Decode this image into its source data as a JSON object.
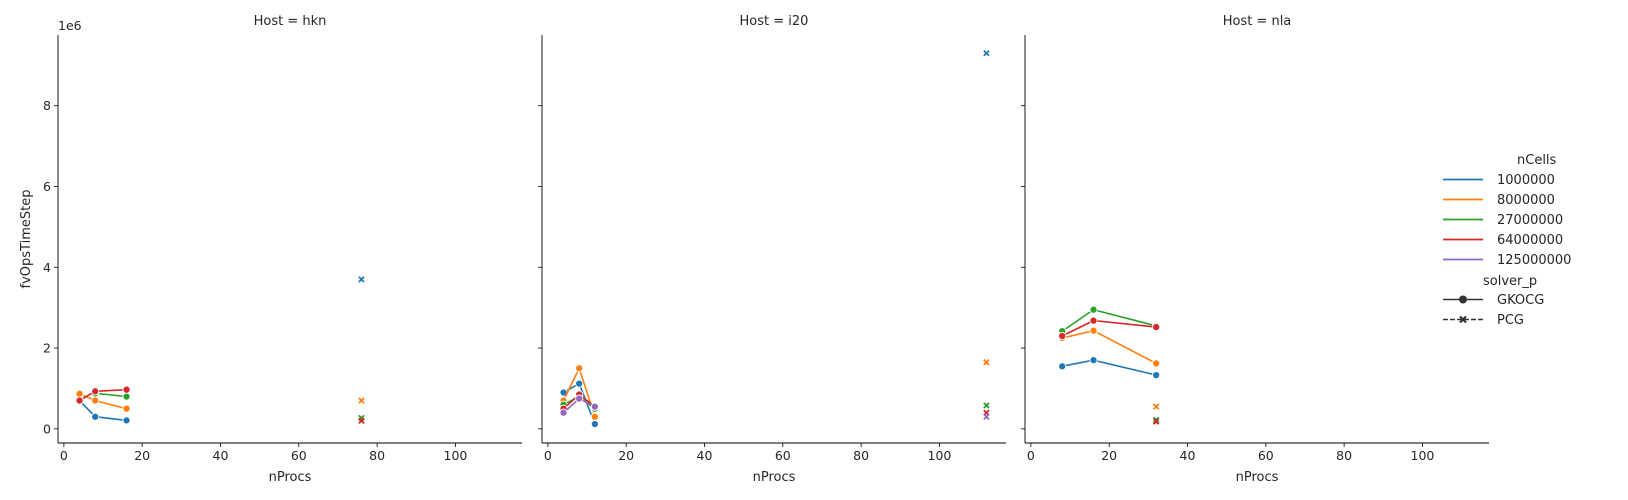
{
  "chart_data": {
    "type": "scatter",
    "x_label": "nProcs",
    "y_label": "fvOpsTimeStep",
    "y_offset_label": "1e6",
    "x_ticks": [
      0,
      20,
      40,
      60,
      80,
      100
    ],
    "x_range": [
      -1.5,
      117
    ],
    "y_ticks": [
      0,
      2,
      4,
      6,
      8
    ],
    "y_range": [
      -0.35,
      9.75
    ],
    "grid": false,
    "legend_placement": "right",
    "colors": {
      "1000000": "#1f77b4",
      "8000000": "#ff7f0e",
      "27000000": "#2ca02c",
      "64000000": "#d62728",
      "125000000": "#9467bd"
    },
    "legend": {
      "hue_title": "nCells",
      "hue_entries": [
        "1000000",
        "8000000",
        "27000000",
        "64000000",
        "125000000"
      ],
      "style_title": "solver_p",
      "style_entries": [
        {
          "label": "GKOCG",
          "marker": "circle",
          "dash": false
        },
        {
          "label": "PCG",
          "marker": "x",
          "dash": true
        }
      ]
    },
    "panels": [
      {
        "title": "Host = hkn",
        "series": [
          {
            "nCells": "1000000",
            "solver": "GKOCG",
            "points": [
              [
                4,
                0.7
              ],
              [
                8,
                0.3
              ],
              [
                16,
                0.21
              ]
            ]
          },
          {
            "nCells": "8000000",
            "solver": "GKOCG",
            "points": [
              [
                4,
                0.87
              ],
              [
                8,
                0.7
              ],
              [
                16,
                0.5
              ]
            ]
          },
          {
            "nCells": "27000000",
            "solver": "GKOCG",
            "points": [
              [
                8,
                0.88
              ],
              [
                16,
                0.8
              ]
            ]
          },
          {
            "nCells": "64000000",
            "solver": "GKOCG",
            "points": [
              [
                4,
                0.7
              ],
              [
                8,
                0.93
              ],
              [
                16,
                0.97
              ]
            ]
          },
          {
            "nCells": "1000000",
            "solver": "PCG",
            "points": [
              [
                76,
                3.7
              ]
            ]
          },
          {
            "nCells": "8000000",
            "solver": "PCG",
            "points": [
              [
                76,
                0.7
              ]
            ]
          },
          {
            "nCells": "27000000",
            "solver": "PCG",
            "points": [
              [
                76,
                0.27
              ]
            ]
          },
          {
            "nCells": "64000000",
            "solver": "PCG",
            "points": [
              [
                76,
                0.2
              ]
            ]
          }
        ]
      },
      {
        "title": "Host = i20",
        "series": [
          {
            "nCells": "1000000",
            "solver": "GKOCG",
            "points": [
              [
                4,
                0.9
              ],
              [
                8,
                1.12
              ],
              [
                12,
                0.12
              ]
            ]
          },
          {
            "nCells": "8000000",
            "solver": "GKOCG",
            "points": [
              [
                4,
                0.7
              ],
              [
                8,
                1.5
              ],
              [
                12,
                0.3
              ]
            ]
          },
          {
            "nCells": "27000000",
            "solver": "GKOCG",
            "points": [
              [
                4,
                0.6
              ],
              [
                8,
                0.8
              ],
              [
                12,
                0.5
              ]
            ]
          },
          {
            "nCells": "64000000",
            "solver": "GKOCG",
            "points": [
              [
                4,
                0.5
              ],
              [
                8,
                0.85
              ],
              [
                12,
                0.55
              ]
            ]
          },
          {
            "nCells": "125000000",
            "solver": "GKOCG",
            "points": [
              [
                4,
                0.4
              ],
              [
                8,
                0.75
              ],
              [
                12,
                0.55
              ]
            ]
          },
          {
            "nCells": "1000000",
            "solver": "PCG",
            "points": [
              [
                112,
                9.3
              ]
            ]
          },
          {
            "nCells": "8000000",
            "solver": "PCG",
            "points": [
              [
                112,
                1.65
              ]
            ]
          },
          {
            "nCells": "27000000",
            "solver": "PCG",
            "points": [
              [
                112,
                0.58
              ]
            ]
          },
          {
            "nCells": "64000000",
            "solver": "PCG",
            "points": [
              [
                112,
                0.4
              ]
            ]
          },
          {
            "nCells": "125000000",
            "solver": "PCG",
            "points": [
              [
                112,
                0.3
              ]
            ]
          }
        ]
      },
      {
        "title": "Host = nla",
        "series": [
          {
            "nCells": "1000000",
            "solver": "GKOCG",
            "points": [
              [
                8,
                1.55
              ],
              [
                16,
                1.7
              ],
              [
                32,
                1.33
              ]
            ]
          },
          {
            "nCells": "8000000",
            "solver": "GKOCG",
            "points": [
              [
                8,
                2.25
              ],
              [
                16,
                2.43
              ],
              [
                32,
                1.62
              ]
            ]
          },
          {
            "nCells": "27000000",
            "solver": "GKOCG",
            "points": [
              [
                8,
                2.42
              ],
              [
                16,
                2.95
              ],
              [
                32,
                2.55
              ]
            ]
          },
          {
            "nCells": "64000000",
            "solver": "GKOCG",
            "points": [
              [
                8,
                2.3
              ],
              [
                16,
                2.68
              ],
              [
                32,
                2.52
              ]
            ]
          },
          {
            "nCells": "1000000",
            "solver": "PCG",
            "points": [
              [
                32,
                0.22
              ]
            ]
          },
          {
            "nCells": "8000000",
            "solver": "PCG",
            "points": [
              [
                32,
                0.55
              ]
            ]
          },
          {
            "nCells": "27000000",
            "solver": "PCG",
            "points": [
              [
                32,
                0.22
              ]
            ]
          },
          {
            "nCells": "64000000",
            "solver": "PCG",
            "points": [
              [
                32,
                0.18
              ]
            ]
          }
        ]
      }
    ]
  }
}
